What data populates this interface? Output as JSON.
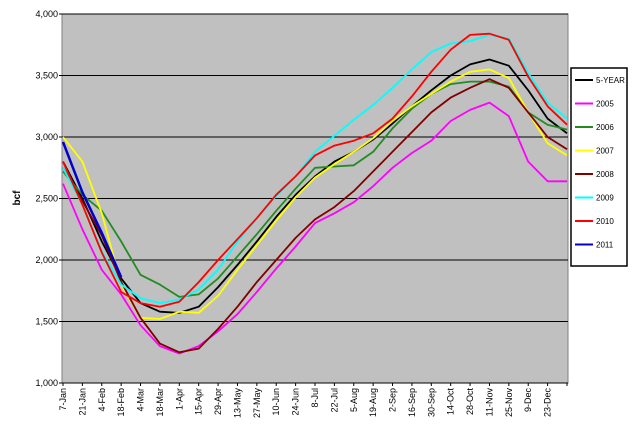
{
  "chart_data": {
    "type": "line",
    "y_label": "bcf",
    "categories": [
      "7-Jan",
      "21-Jan",
      "4-Feb",
      "18-Feb",
      "4-Mar",
      "18-Mar",
      "1-Apr",
      "15-Apr",
      "29-Apr",
      "13-May",
      "27-May",
      "10-Jun",
      "24-Jun",
      "8-Jul",
      "22-Jul",
      "5-Aug",
      "19-Aug",
      "2-Sep",
      "16-Sep",
      "30-Sep",
      "14-Oct",
      "28-Oct",
      "11-Nov",
      "25-Nov",
      "9-Dec",
      "23-Dec",
      null
    ],
    "ylim": [
      1000,
      4000
    ],
    "yticks": [
      {
        "value": 1000,
        "label": "1,000"
      },
      {
        "value": 1500,
        "label": "1,500"
      },
      {
        "value": 2000,
        "label": "2,000"
      },
      {
        "value": 2500,
        "label": "2,500"
      },
      {
        "value": 3000,
        "label": "3,000"
      },
      {
        "value": 3500,
        "label": "3,500"
      },
      {
        "value": 4000,
        "label": "4,000"
      }
    ],
    "grid": true,
    "background": "#c0c0c0",
    "legend": "right",
    "series": [
      {
        "name": "5-YEAR",
        "color": "#000000",
        "values": [
          2800,
          2500,
          2150,
          1850,
          1650,
          1580,
          1570,
          1620,
          1780,
          1960,
          2150,
          2350,
          2530,
          2680,
          2800,
          2880,
          2980,
          3110,
          3250,
          3380,
          3500,
          3590,
          3630,
          3580,
          3380,
          3150,
          3030
        ]
      },
      {
        "name": "2005",
        "color": "#ff00ff",
        "values": [
          2620,
          2250,
          1920,
          1720,
          1470,
          1300,
          1240,
          1300,
          1420,
          1560,
          1740,
          1930,
          2110,
          2300,
          2380,
          2470,
          2600,
          2750,
          2870,
          2970,
          3130,
          3220,
          3280,
          3170,
          2800,
          2640,
          2640
        ]
      },
      {
        "name": "2006",
        "color": "#228b22",
        "values": [
          2720,
          2530,
          2400,
          2150,
          1880,
          1800,
          1700,
          1720,
          1850,
          2030,
          2210,
          2400,
          2580,
          2750,
          2760,
          2770,
          2880,
          3070,
          3230,
          3350,
          3430,
          3450,
          3450,
          3410,
          3200,
          3100,
          3060
        ]
      },
      {
        "name": "2007",
        "color": "#ffff00",
        "values": [
          3000,
          2800,
          2380,
          1800,
          1530,
          1520,
          1580,
          1570,
          1710,
          1920,
          2120,
          2320,
          2510,
          2670,
          2780,
          2880,
          2990,
          3130,
          3250,
          3350,
          3450,
          3530,
          3550,
          3480,
          3200,
          2950,
          2850
        ]
      },
      {
        "name": "2008",
        "color": "#800000",
        "values": [
          2750,
          2480,
          2200,
          1820,
          1530,
          1320,
          1250,
          1280,
          1440,
          1620,
          1820,
          2000,
          2180,
          2330,
          2430,
          2560,
          2720,
          2880,
          3040,
          3200,
          3320,
          3400,
          3470,
          3400,
          3200,
          3000,
          2900
        ]
      },
      {
        "name": "2009",
        "color": "#00ffff",
        "values": [
          2750,
          2450,
          2070,
          1800,
          1690,
          1650,
          1680,
          1760,
          1920,
          2150,
          2340,
          2520,
          2680,
          2880,
          3010,
          3140,
          3260,
          3400,
          3550,
          3690,
          3760,
          3780,
          3830,
          3800,
          3520,
          3280,
          3150
        ]
      },
      {
        "name": "2010",
        "color": "#ff0000",
        "values": [
          2800,
          2450,
          2060,
          1740,
          1650,
          1620,
          1660,
          1820,
          2000,
          2170,
          2340,
          2530,
          2680,
          2850,
          2930,
          2970,
          3030,
          3150,
          3330,
          3530,
          3710,
          3830,
          3840,
          3790,
          3490,
          3250,
          3100
        ]
      },
      {
        "name": "2011",
        "color": "#0000cc",
        "values": [
          2960,
          2550,
          2220,
          1860,
          null,
          null,
          null,
          null,
          null,
          null,
          null,
          null,
          null,
          null,
          null,
          null,
          null,
          null,
          null,
          null,
          null,
          null,
          null,
          null,
          null,
          null,
          null
        ]
      }
    ]
  }
}
